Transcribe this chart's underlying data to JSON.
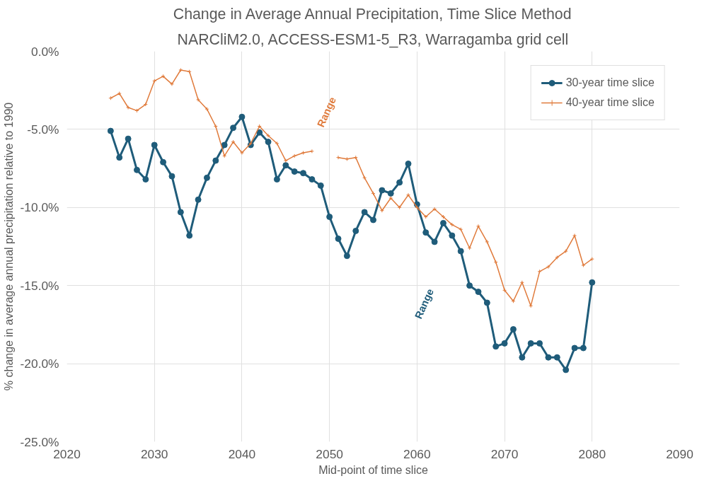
{
  "chart_data": {
    "type": "line",
    "title": "Change in Average Annual Precipitation, Time Slice Method",
    "subtitle": "NARCliM2.0, ACCESS-ESM1-5_R3, Warragamba grid cell",
    "xlabel": "Mid-point of time slice",
    "ylabel": "% change in average annual precipitation relative to 1990",
    "x": [
      2025,
      2026,
      2027,
      2028,
      2029,
      2030,
      2031,
      2032,
      2033,
      2034,
      2035,
      2036,
      2037,
      2038,
      2039,
      2040,
      2041,
      2042,
      2043,
      2044,
      2045,
      2046,
      2047,
      2048,
      2049,
      2050,
      2051,
      2052,
      2053,
      2054,
      2055,
      2056,
      2057,
      2058,
      2059,
      2060,
      2061,
      2062,
      2063,
      2064,
      2065,
      2066,
      2067,
      2068,
      2069,
      2070,
      2071,
      2072,
      2073,
      2074,
      2075,
      2076,
      2077,
      2078,
      2079,
      2080
    ],
    "series": [
      {
        "name": "30-year time slice",
        "color": "#1f5c7a",
        "marker": "circle",
        "values": [
          -5.1,
          -6.8,
          -5.6,
          -7.6,
          -8.2,
          -6.0,
          -7.1,
          -8.0,
          -10.3,
          -11.8,
          -9.5,
          -8.1,
          -7.0,
          -6.0,
          -4.9,
          -4.2,
          -6.0,
          -5.2,
          -5.8,
          -8.2,
          -7.3,
          -7.7,
          -7.8,
          -8.2,
          -8.6,
          -10.6,
          -12.0,
          -13.1,
          -11.5,
          -10.3,
          -10.8,
          -8.9,
          -9.1,
          -8.4,
          -7.2,
          -9.8,
          -11.6,
          -12.2,
          -11.0,
          -11.8,
          -12.8,
          -15.0,
          -15.4,
          -16.1,
          -18.9,
          -18.7,
          -17.8,
          -19.6,
          -18.7,
          -18.7,
          -19.6,
          -19.6,
          -20.4,
          -19.0,
          -19.0,
          -14.8
        ]
      },
      {
        "name": "40-year time slice",
        "color": "#e07b3c",
        "marker": "cross",
        "values": [
          -3.0,
          -2.7,
          -3.6,
          -3.8,
          -3.4,
          -1.9,
          -1.6,
          -2.1,
          -1.2,
          -1.3,
          -3.1,
          -3.7,
          -4.8,
          -6.7,
          -5.8,
          -6.5,
          -5.9,
          -4.8,
          -5.4,
          -5.9,
          -7.0,
          -6.7,
          -6.5,
          -6.4,
          null,
          null,
          -6.8,
          -6.9,
          -6.8,
          -8.1,
          -9.1,
          -10.2,
          -9.4,
          -10.0,
          -9.2,
          -10.0,
          -10.6,
          -10.1,
          -10.6,
          -11.1,
          -11.4,
          -12.6,
          -11.2,
          -12.2,
          -13.5,
          -15.3,
          -16.0,
          -14.8,
          -16.3,
          -14.1,
          -13.8,
          -13.2,
          -12.8,
          -11.8,
          -13.7,
          -13.3
        ]
      }
    ],
    "xlim": [
      2020,
      2090
    ],
    "xticks": [
      2020,
      2030,
      2040,
      2050,
      2060,
      2070,
      2080,
      2090
    ],
    "ylim": [
      -25,
      0
    ],
    "yticks": [
      {
        "value": 0,
        "label": "0.0%"
      },
      {
        "value": -5,
        "label": "-5.0%"
      },
      {
        "value": -10,
        "label": "-10.0%"
      },
      {
        "value": -15,
        "label": "-15.0%"
      },
      {
        "value": -20,
        "label": "-20.0%"
      },
      {
        "value": -25,
        "label": "-25.0%"
      }
    ],
    "annotations": [
      "Range",
      "Range"
    ],
    "grid": true,
    "legend": "top right"
  }
}
